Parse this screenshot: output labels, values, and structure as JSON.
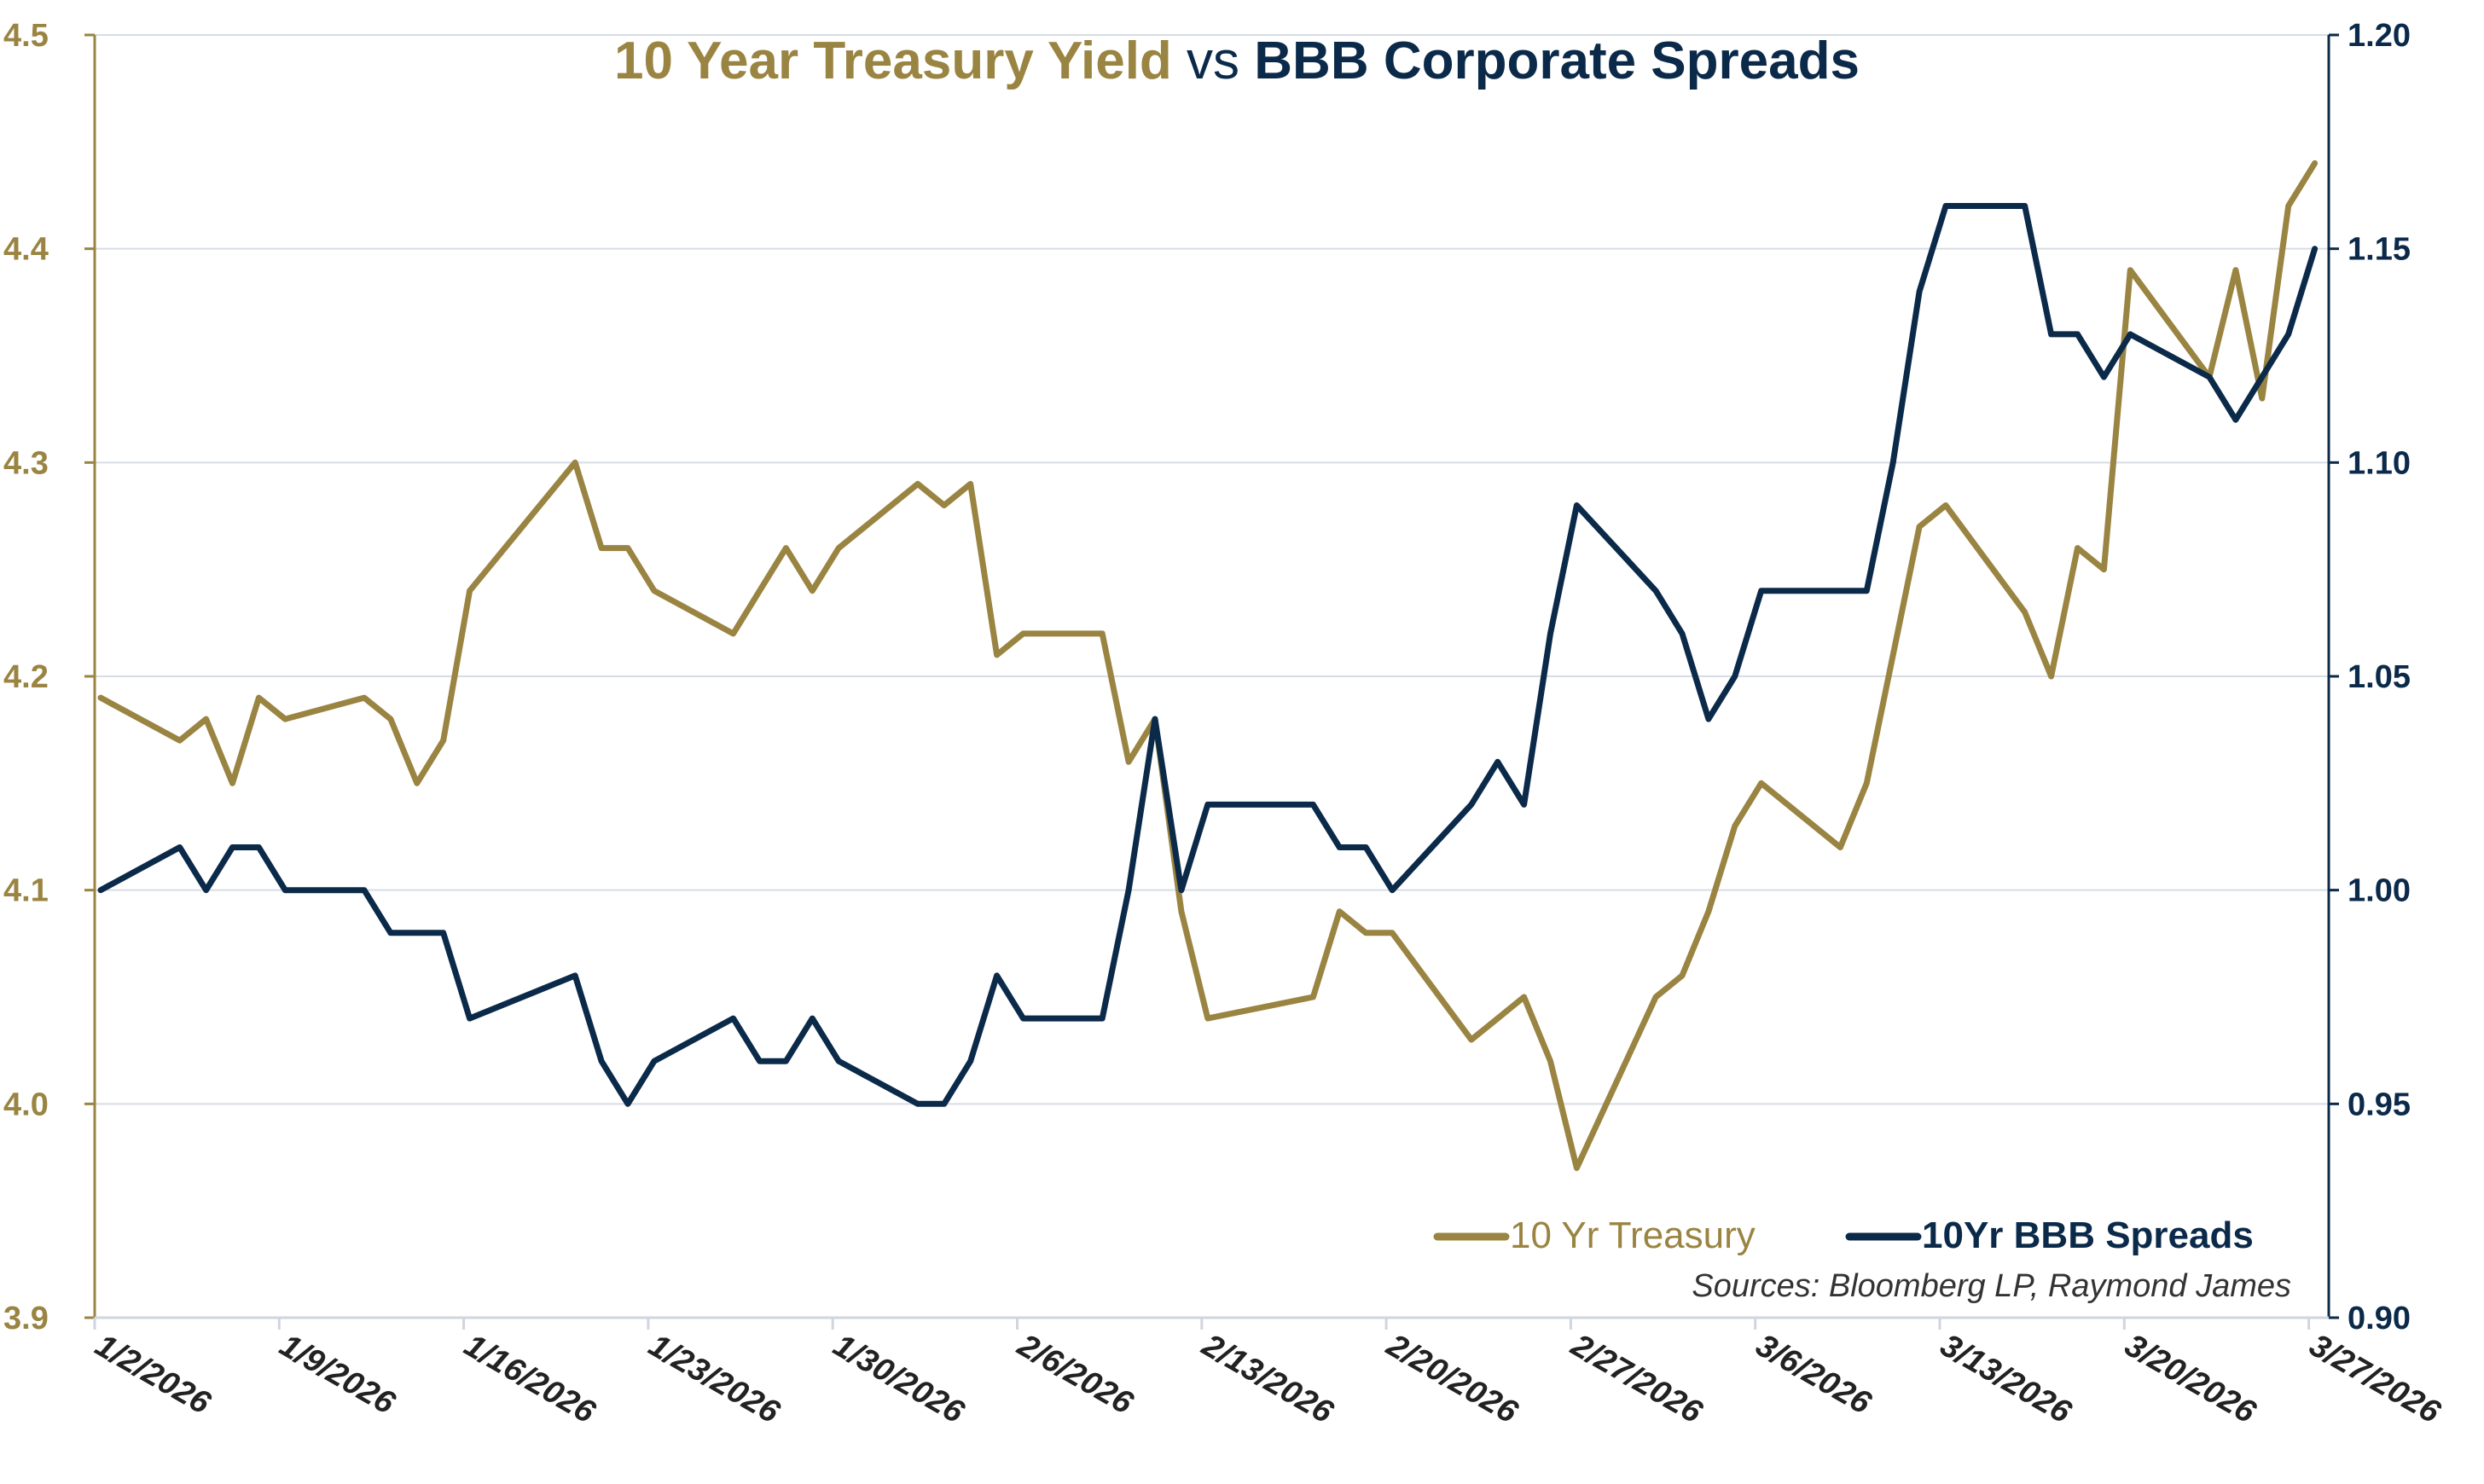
{
  "chart_data": {
    "type": "line",
    "title_part1": "10 Year Treasury Yield",
    "title_mid": " vs ",
    "title_part2": "BBB Corporate Spreads",
    "source": "Sources: Bloomberg LP, Raymond James",
    "legend_position": "bottom-right",
    "grid": true,
    "colors": {
      "treasury": "#9a8442",
      "bbb": "#0b2a4a"
    },
    "y_left": {
      "lim": [
        3.9,
        4.5
      ],
      "ticks": [
        "3.9",
        "4.0",
        "4.1",
        "4.2",
        "4.3",
        "4.4",
        "4.5"
      ]
    },
    "y_right": {
      "lim": [
        0.9,
        1.2
      ],
      "ticks": [
        "0.90",
        "0.95",
        "1.00",
        "1.05",
        "1.10",
        "1.15",
        "1.20"
      ]
    },
    "x_ticks": [
      "1/2/2026",
      "1/9/2026",
      "1/16/2026",
      "1/23/2026",
      "1/30/2026",
      "2/6/2026",
      "2/13/2026",
      "2/20/2026",
      "2/27/2026",
      "3/6/2026",
      "3/13/2026",
      "3/20/2026",
      "3/27/2026"
    ],
    "x": [
      "1/2",
      "1/5",
      "1/6",
      "1/7",
      "1/8",
      "1/9",
      "1/12",
      "1/13",
      "1/14",
      "1/15",
      "1/16",
      "1/20",
      "1/21",
      "1/22",
      "1/23",
      "1/26",
      "1/27",
      "1/28",
      "1/29",
      "1/30",
      "2/2",
      "2/3",
      "2/4",
      "2/5",
      "2/6",
      "2/9",
      "2/10",
      "2/11",
      "2/12",
      "2/13",
      "2/17",
      "2/18",
      "2/19",
      "2/20",
      "2/23",
      "2/24",
      "2/25",
      "2/26",
      "2/27",
      "3/2",
      "3/3",
      "3/4",
      "3/5",
      "3/6",
      "3/9",
      "3/10",
      "3/11",
      "3/12",
      "3/13",
      "3/16",
      "3/17",
      "3/18",
      "3/19",
      "3/20",
      "3/23",
      "3/24",
      "3/25",
      "3/26",
      "3/27"
    ],
    "series": [
      {
        "name": "10 Yr Treasury",
        "axis": "left",
        "values": [
          4.19,
          4.17,
          4.18,
          4.15,
          4.19,
          4.18,
          4.19,
          4.18,
          4.15,
          4.17,
          4.24,
          4.3,
          4.26,
          4.26,
          4.24,
          4.22,
          4.24,
          4.26,
          4.24,
          4.26,
          4.29,
          4.28,
          4.29,
          4.21,
          4.22,
          4.22,
          4.16,
          4.18,
          4.09,
          4.04,
          4.05,
          4.09,
          4.08,
          4.08,
          4.03,
          4.04,
          4.05,
          4.02,
          3.97,
          4.05,
          4.06,
          4.09,
          4.13,
          4.15,
          4.12,
          4.15,
          4.21,
          4.27,
          4.28,
          4.23,
          4.2,
          4.26,
          4.25,
          4.39,
          4.34,
          4.39,
          4.33,
          4.42,
          4.44
        ]
      },
      {
        "name": "10Yr BBB Spreads",
        "axis": "right",
        "values": [
          1.0,
          1.01,
          1.0,
          1.01,
          1.01,
          1.0,
          1.0,
          0.99,
          0.99,
          0.99,
          0.97,
          0.98,
          0.96,
          0.95,
          0.96,
          0.97,
          0.96,
          0.96,
          0.97,
          0.96,
          0.95,
          0.95,
          0.96,
          0.98,
          0.97,
          0.97,
          1.0,
          1.04,
          1.0,
          1.02,
          1.02,
          1.01,
          1.01,
          1.0,
          1.02,
          1.03,
          1.02,
          1.06,
          1.09,
          1.07,
          1.06,
          1.04,
          1.05,
          1.07,
          1.07,
          1.07,
          1.1,
          1.14,
          1.16,
          1.16,
          1.13,
          1.13,
          1.12,
          1.13,
          1.12,
          1.11,
          1.12,
          1.13,
          1.15
        ]
      }
    ]
  }
}
